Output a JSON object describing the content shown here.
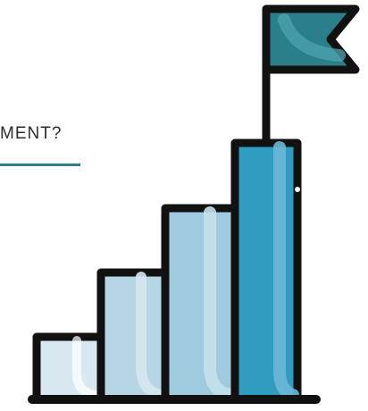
{
  "heading": {
    "text": "MENT?",
    "underline_color": "#2a7f8a"
  },
  "illustration": {
    "icon": "growth-bar-chart-with-flag-icon",
    "colors": {
      "outline": "#111111",
      "bar_1": "#d9e9f1",
      "bar_2": "#b6d6e6",
      "bar_3": "#9ecbdd",
      "bar_4": "#2f9cc0",
      "flag": "#2a7f8a",
      "flag_highlight": "#4fa4ad"
    }
  }
}
